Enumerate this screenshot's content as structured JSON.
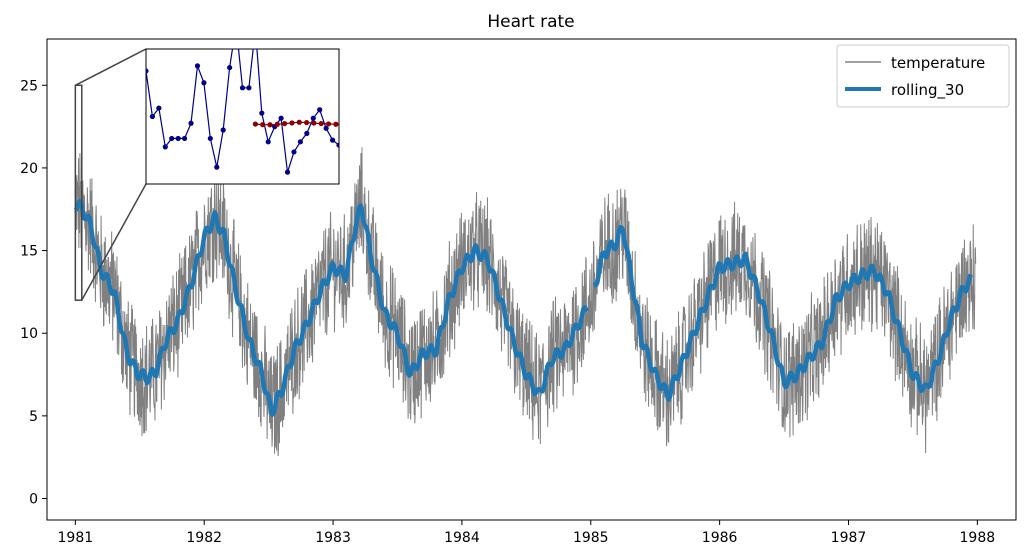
{
  "chart_data": {
    "type": "line",
    "title": "Heart rate",
    "xlabel": "",
    "ylabel": "",
    "xlim": [
      1980.78,
      1988.3
    ],
    "ylim": [
      -1.3,
      27.8
    ],
    "x_ticks": [
      1981,
      1982,
      1983,
      1984,
      1985,
      1986,
      1987,
      1988
    ],
    "x_tick_labels": [
      "1981",
      "1982",
      "1983",
      "1984",
      "1985",
      "1986",
      "1987",
      "1988"
    ],
    "y_ticks": [
      0,
      5,
      10,
      15,
      20,
      25
    ],
    "y_tick_labels": [
      "0",
      "5",
      "10",
      "15",
      "20",
      "25"
    ],
    "legend": {
      "position": "top-right",
      "entries": [
        "temperature",
        "rolling_30"
      ]
    },
    "colors": {
      "temperature": "#808080",
      "rolling_30": "#1f77b4",
      "inset_raw": "#00008b",
      "inset_roll": "#8b0000"
    },
    "series": [
      {
        "name": "temperature",
        "description": "daily values, noisy around the rolling mean",
        "noise_amplitude": 3.2
      },
      {
        "name": "rolling_30",
        "x": [
          1981.0,
          1981.05,
          1981.12,
          1981.2,
          1981.3,
          1981.4,
          1981.48,
          1981.55,
          1981.62,
          1981.7,
          1981.8,
          1981.9,
          1982.0,
          1982.08,
          1982.15,
          1982.25,
          1982.35,
          1982.45,
          1982.52,
          1982.6,
          1982.7,
          1982.8,
          1982.9,
          1983.0,
          1983.1,
          1983.16,
          1983.22,
          1983.3,
          1983.4,
          1983.5,
          1983.6,
          1983.7,
          1983.8,
          1983.9,
          1984.0,
          1984.1,
          1984.2,
          1984.3,
          1984.4,
          1984.5,
          1984.6,
          1984.7,
          1984.8,
          1984.9,
          1985.0,
          1985.1,
          1985.2,
          1985.25,
          1985.3,
          1985.4,
          1985.5,
          1985.6,
          1985.7,
          1985.8,
          1985.9,
          1986.0,
          1986.1,
          1986.2,
          1986.3,
          1986.4,
          1986.5,
          1986.6,
          1986.7,
          1986.8,
          1986.9,
          1987.0,
          1987.1,
          1987.2,
          1987.3,
          1987.4,
          1987.5,
          1987.6,
          1987.7,
          1987.8,
          1987.9,
          1987.95
        ],
        "values": [
          17.8,
          17.6,
          16.5,
          13.8,
          12.5,
          8.8,
          7.6,
          7.3,
          7.6,
          9.5,
          10.8,
          13.0,
          15.8,
          17.0,
          16.0,
          12.5,
          9.5,
          7.5,
          5.2,
          6.5,
          9.0,
          10.6,
          12.5,
          14.0,
          13.5,
          16.0,
          17.8,
          14.5,
          11.2,
          10.0,
          7.5,
          8.8,
          9.0,
          12.0,
          14.0,
          15.0,
          14.5,
          12.0,
          9.5,
          7.5,
          6.2,
          8.5,
          9.0,
          10.5,
          12.0,
          14.8,
          15.5,
          16.5,
          14.0,
          9.5,
          7.5,
          6.2,
          8.0,
          10.0,
          12.0,
          14.0,
          14.2,
          14.5,
          12.5,
          10.0,
          7.0,
          7.5,
          8.5,
          9.5,
          12.0,
          13.0,
          13.5,
          13.8,
          12.5,
          10.0,
          7.5,
          6.5,
          8.5,
          11.0,
          12.8,
          13.2
        ]
      }
    ],
    "inset": {
      "zoom_region_x": [
        1981.0,
        1981.05
      ],
      "zoom_region_y": [
        12,
        25
      ],
      "raw": [
        19.5,
        16.8,
        17.3,
        15.0,
        15.5,
        15.5,
        15.5,
        16.4,
        19.8,
        18.8,
        15.5,
        13.8,
        16.0,
        19.7,
        22.2,
        18.5,
        18.5,
        22.0,
        17.0,
        15.3,
        16.2,
        16.7,
        13.5,
        14.7,
        15.3,
        15.8,
        16.7,
        17.2,
        16.1,
        15.4,
        15.1
      ],
      "rolling": [
        16.35,
        16.32,
        16.31,
        16.34,
        16.38,
        16.42,
        16.46,
        16.44,
        16.41,
        16.38,
        16.36,
        16.34,
        16.3
      ]
    }
  }
}
